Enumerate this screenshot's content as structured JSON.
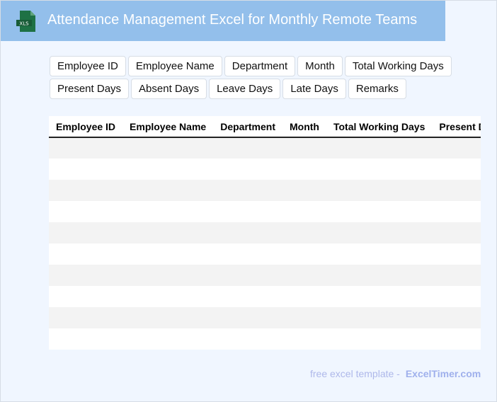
{
  "header": {
    "title": "Attendance Management Excel for Monthly Remote Teams",
    "logo_text": "XLS",
    "logo_color": "#1e7145"
  },
  "chips": [
    "Employee ID",
    "Employee Name",
    "Department",
    "Month",
    "Total Working Days",
    "Present Days",
    "Absent Days",
    "Leave Days",
    "Late Days",
    "Remarks"
  ],
  "table": {
    "columns": [
      "Employee ID",
      "Employee Name",
      "Department",
      "Month",
      "Total Working Days",
      "Present Days"
    ],
    "row_count": 10
  },
  "footer": {
    "text": "free excel template -",
    "brand": "ExcelTimer.com"
  }
}
